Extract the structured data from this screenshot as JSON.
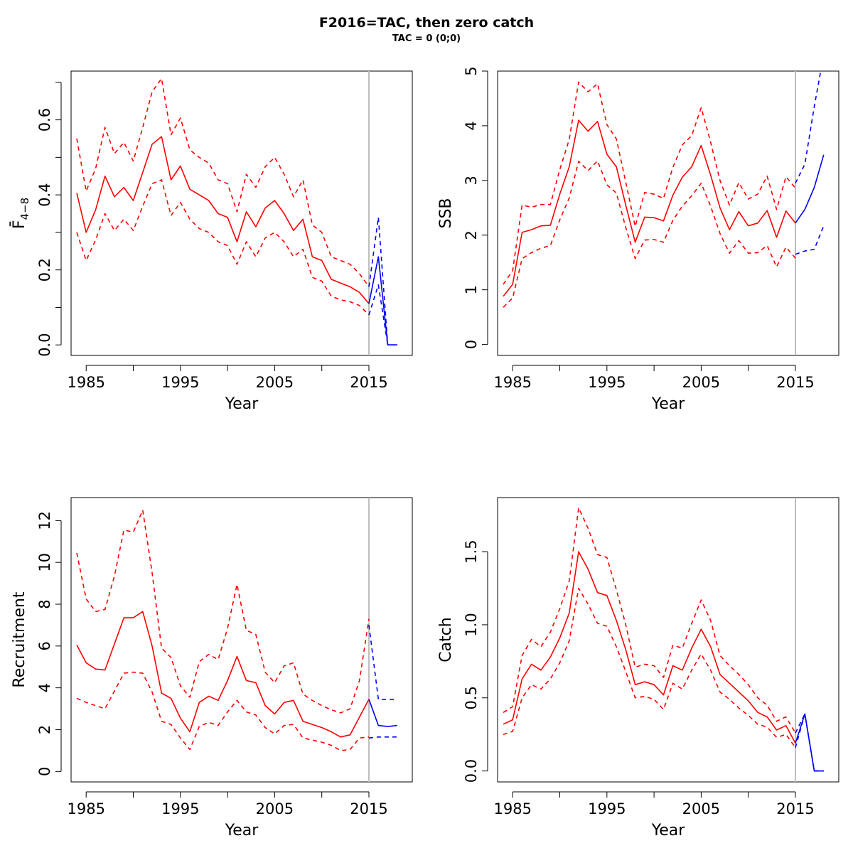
{
  "title": "F2016=TAC, then zero catch",
  "subtitle": "TAC = 0 (0;0)",
  "colors": {
    "history": "#ff0000",
    "forecast": "#0000ff",
    "divider": "#bebebe",
    "axis": "#000000"
  },
  "chart_data": [
    {
      "type": "line",
      "id": "fbar",
      "xlabel": "Year",
      "ylabel": "F̄",
      "ylabel_subscript": "4−8",
      "xlim": [
        1983.4,
        2019.6
      ],
      "ylim": [
        -0.028,
        0.73
      ],
      "x_ticks": [
        1985,
        1990,
        1995,
        2000,
        2005,
        2010,
        2015
      ],
      "x_tick_labels": [
        "1985",
        "",
        "1995",
        "",
        "2005",
        "",
        "2015"
      ],
      "y_ticks": [
        0.0,
        0.1,
        0.2,
        0.3,
        0.4,
        0.5,
        0.6,
        0.7
      ],
      "y_tick_labels": [
        "0.0",
        "",
        "0.2",
        "",
        "0.4",
        "",
        "0.6",
        ""
      ],
      "divider_x": 2015,
      "history": {
        "x": [
          1984,
          1985,
          1986,
          1987,
          1988,
          1989,
          1990,
          1991,
          1992,
          1993,
          1994,
          1995,
          1996,
          1997,
          1998,
          1999,
          2000,
          2001,
          2002,
          2003,
          2004,
          2005,
          2006,
          2007,
          2008,
          2009,
          2010,
          2011,
          2012,
          2013,
          2014,
          2015
        ],
        "estimate": [
          0.405,
          0.3,
          0.36,
          0.45,
          0.395,
          0.42,
          0.385,
          0.46,
          0.535,
          0.555,
          0.44,
          0.477,
          0.415,
          0.4,
          0.385,
          0.35,
          0.34,
          0.275,
          0.355,
          0.315,
          0.365,
          0.385,
          0.35,
          0.305,
          0.335,
          0.235,
          0.225,
          0.175,
          0.165,
          0.155,
          0.14,
          0.11
        ],
        "upper": [
          0.55,
          0.41,
          0.47,
          0.58,
          0.51,
          0.54,
          0.49,
          0.58,
          0.675,
          0.71,
          0.56,
          0.605,
          0.52,
          0.5,
          0.485,
          0.44,
          0.43,
          0.355,
          0.455,
          0.42,
          0.475,
          0.5,
          0.455,
          0.395,
          0.44,
          0.32,
          0.3,
          0.235,
          0.225,
          0.215,
          0.19,
          0.155
        ],
        "lower": [
          0.3,
          0.225,
          0.28,
          0.35,
          0.305,
          0.335,
          0.305,
          0.37,
          0.43,
          0.44,
          0.345,
          0.38,
          0.335,
          0.31,
          0.3,
          0.275,
          0.265,
          0.215,
          0.275,
          0.235,
          0.285,
          0.3,
          0.275,
          0.235,
          0.255,
          0.18,
          0.17,
          0.13,
          0.12,
          0.115,
          0.105,
          0.08
        ]
      },
      "forecast": {
        "x": [
          2015,
          2016,
          2017,
          2018
        ],
        "estimate": [
          0.11,
          0.235,
          0.0,
          0.0
        ],
        "upper": [
          0.155,
          0.34,
          0.0,
          0.0
        ],
        "lower": [
          0.08,
          0.16,
          0.0,
          0.0
        ]
      }
    },
    {
      "type": "line",
      "id": "ssb",
      "xlabel": "Year",
      "ylabel": "SSB",
      "xlim": [
        1983.4,
        2019.6
      ],
      "ylim": [
        -0.2,
        5.0
      ],
      "x_ticks": [
        1985,
        1990,
        1995,
        2000,
        2005,
        2010,
        2015
      ],
      "x_tick_labels": [
        "1985",
        "",
        "1995",
        "",
        "2005",
        "",
        "2015"
      ],
      "y_ticks": [
        0,
        1,
        2,
        3,
        4,
        5
      ],
      "y_tick_labels": [
        "0",
        "1",
        "2",
        "3",
        "4",
        "5"
      ],
      "divider_x": 2015,
      "history": {
        "x": [
          1984,
          1985,
          1986,
          1987,
          1988,
          1989,
          1990,
          1991,
          1992,
          1993,
          1994,
          1995,
          1996,
          1997,
          1998,
          1999,
          2000,
          2001,
          2002,
          2003,
          2004,
          2005,
          2006,
          2007,
          2008,
          2009,
          2010,
          2011,
          2012,
          2013,
          2014,
          2015
        ],
        "estimate": [
          0.88,
          1.1,
          2.05,
          2.1,
          2.17,
          2.18,
          2.75,
          3.25,
          4.1,
          3.9,
          4.08,
          3.48,
          3.25,
          2.55,
          1.87,
          2.33,
          2.32,
          2.26,
          2.73,
          3.06,
          3.25,
          3.64,
          3.1,
          2.5,
          2.1,
          2.43,
          2.17,
          2.22,
          2.45,
          1.96,
          2.44,
          2.22
        ],
        "upper": [
          1.1,
          1.35,
          2.55,
          2.51,
          2.56,
          2.56,
          3.2,
          3.75,
          4.8,
          4.62,
          4.77,
          4.02,
          3.76,
          2.97,
          2.16,
          2.78,
          2.75,
          2.67,
          3.24,
          3.65,
          3.82,
          4.33,
          3.7,
          3.0,
          2.55,
          2.96,
          2.66,
          2.75,
          3.08,
          2.47,
          3.07,
          2.86
        ],
        "lower": [
          0.68,
          0.85,
          1.57,
          1.68,
          1.76,
          1.81,
          2.28,
          2.68,
          3.35,
          3.18,
          3.36,
          2.92,
          2.77,
          2.14,
          1.57,
          1.91,
          1.92,
          1.87,
          2.27,
          2.53,
          2.72,
          2.95,
          2.53,
          2.03,
          1.67,
          1.9,
          1.67,
          1.68,
          1.81,
          1.42,
          1.78,
          1.58
        ]
      },
      "forecast": {
        "x": [
          2015,
          2016,
          2017,
          2018
        ],
        "estimate": [
          2.22,
          2.47,
          2.87,
          3.47
        ],
        "upper": [
          2.95,
          3.3,
          4.35,
          5.3
        ],
        "lower": [
          1.65,
          1.71,
          1.74,
          2.17
        ]
      }
    },
    {
      "type": "line",
      "id": "recruitment",
      "xlabel": "Year",
      "ylabel": "Recruitment",
      "xlim": [
        1983.4,
        2019.6
      ],
      "ylim": [
        -0.5,
        13.1
      ],
      "x_ticks": [
        1985,
        1990,
        1995,
        2000,
        2005,
        2010,
        2015
      ],
      "x_tick_labels": [
        "1985",
        "",
        "1995",
        "",
        "2005",
        "",
        "2015"
      ],
      "y_ticks": [
        0,
        2,
        4,
        6,
        8,
        10,
        12
      ],
      "y_tick_labels": [
        "0",
        "2",
        "4",
        "6",
        "8",
        "10",
        "12"
      ],
      "divider_x": 2015,
      "history": {
        "x": [
          1984,
          1985,
          1986,
          1987,
          1988,
          1989,
          1990,
          1991,
          1992,
          1993,
          1994,
          1995,
          1996,
          1997,
          1998,
          1999,
          2000,
          2001,
          2002,
          2003,
          2004,
          2005,
          2006,
          2007,
          2008,
          2009,
          2010,
          2011,
          2012,
          2013,
          2014,
          2015
        ],
        "estimate": [
          6.05,
          5.2,
          4.9,
          4.85,
          6.1,
          7.35,
          7.35,
          7.65,
          6.0,
          3.75,
          3.5,
          2.55,
          1.9,
          3.3,
          3.6,
          3.4,
          4.35,
          5.5,
          4.35,
          4.25,
          3.15,
          2.75,
          3.3,
          3.4,
          2.4,
          2.25,
          2.1,
          1.9,
          1.65,
          1.75,
          2.6,
          3.45
        ],
        "upper": [
          10.45,
          8.25,
          7.65,
          7.75,
          9.35,
          11.55,
          11.45,
          12.5,
          9.5,
          5.9,
          5.45,
          4.1,
          3.55,
          5.25,
          5.6,
          5.35,
          6.85,
          8.95,
          6.75,
          6.55,
          4.75,
          4.25,
          5.05,
          5.2,
          3.7,
          3.4,
          3.15,
          2.95,
          2.8,
          3.0,
          4.35,
          7.3
        ],
        "lower": [
          3.5,
          3.3,
          3.15,
          3.0,
          3.85,
          4.7,
          4.75,
          4.7,
          3.8,
          2.4,
          2.25,
          1.6,
          1.05,
          2.15,
          2.35,
          2.2,
          2.85,
          3.4,
          2.85,
          2.7,
          2.1,
          1.8,
          2.2,
          2.25,
          1.6,
          1.5,
          1.4,
          1.25,
          1.0,
          1.05,
          1.6,
          1.65
        ]
      },
      "forecast": {
        "x": [
          2015,
          2016,
          2017,
          2018
        ],
        "estimate": [
          3.45,
          2.2,
          2.15,
          2.2
        ],
        "upper": [
          7.0,
          3.45,
          3.45,
          3.45
        ],
        "lower": [
          1.6,
          1.65,
          1.65,
          1.65
        ]
      }
    },
    {
      "type": "line",
      "id": "catch",
      "xlabel": "Year",
      "ylabel": "Catch",
      "xlim": [
        1983.4,
        2019.6
      ],
      "ylim": [
        -0.075,
        1.87
      ],
      "x_ticks": [
        1985,
        1990,
        1995,
        2000,
        2005,
        2010,
        2015
      ],
      "x_tick_labels": [
        "1985",
        "",
        "1995",
        "",
        "2005",
        "",
        "2015"
      ],
      "y_ticks": [
        0.0,
        0.5,
        1.0,
        1.5
      ],
      "y_tick_labels": [
        "0.0",
        "0.5",
        "1.0",
        "1.5"
      ],
      "divider_x": 2015,
      "history": {
        "x": [
          1984,
          1985,
          1986,
          1987,
          1988,
          1989,
          1990,
          1991,
          1992,
          1993,
          1994,
          1995,
          1996,
          1997,
          1998,
          1999,
          2000,
          2001,
          2002,
          2003,
          2004,
          2005,
          2006,
          2007,
          2008,
          2009,
          2010,
          2011,
          2012,
          2013,
          2014,
          2015
        ],
        "estimate": [
          0.32,
          0.35,
          0.63,
          0.73,
          0.69,
          0.78,
          0.91,
          1.08,
          1.5,
          1.38,
          1.22,
          1.2,
          1.03,
          0.83,
          0.59,
          0.61,
          0.59,
          0.52,
          0.72,
          0.69,
          0.84,
          0.97,
          0.85,
          0.66,
          0.6,
          0.54,
          0.48,
          0.4,
          0.37,
          0.28,
          0.31,
          0.19
        ],
        "upper": [
          0.4,
          0.44,
          0.79,
          0.9,
          0.85,
          0.95,
          1.11,
          1.3,
          1.8,
          1.66,
          1.48,
          1.46,
          1.24,
          1.0,
          0.71,
          0.73,
          0.72,
          0.64,
          0.86,
          0.84,
          1.01,
          1.17,
          1.03,
          0.79,
          0.72,
          0.66,
          0.59,
          0.5,
          0.45,
          0.34,
          0.37,
          0.26
        ],
        "lower": [
          0.25,
          0.27,
          0.5,
          0.59,
          0.56,
          0.63,
          0.74,
          0.89,
          1.25,
          1.14,
          1.01,
          0.99,
          0.85,
          0.68,
          0.5,
          0.51,
          0.49,
          0.42,
          0.6,
          0.56,
          0.69,
          0.8,
          0.69,
          0.54,
          0.49,
          0.43,
          0.38,
          0.32,
          0.3,
          0.23,
          0.25,
          0.16
        ]
      },
      "forecast": {
        "x": [
          2015,
          2016,
          2017,
          2018
        ],
        "estimate": [
          0.19,
          0.39,
          0.0,
          0.0
        ],
        "upper": [
          0.26,
          0.39,
          0.0,
          0.0
        ],
        "lower": [
          0.16,
          0.39,
          0.0,
          0.0
        ]
      }
    }
  ]
}
